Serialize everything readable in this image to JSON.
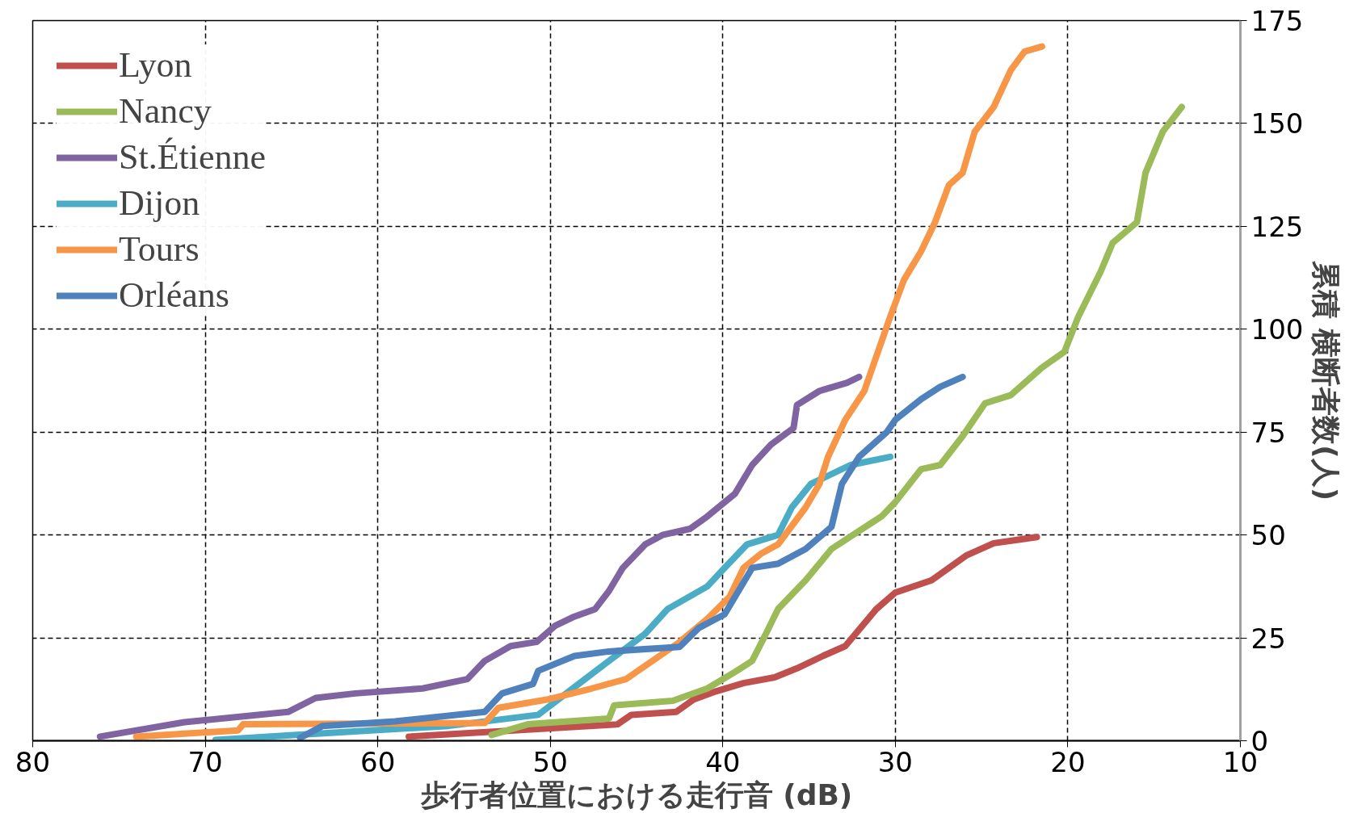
{
  "chart_data": {
    "type": "line",
    "xlabel": "歩行者位置における走行音 (dB)",
    "ylabel": "累積 横断者数(人)",
    "xlim": [
      80,
      10
    ],
    "xticks": [
      80,
      70,
      60,
      50,
      40,
      30,
      20,
      10
    ],
    "ylim": [
      0,
      175
    ],
    "yticks": [
      0,
      25,
      50,
      75,
      100,
      125,
      150,
      175
    ],
    "grid": true,
    "legend": "top left",
    "line_style": "solid",
    "series": [
      {
        "name": "Lyon",
        "color": "#c0504d",
        "x": [
          58.2,
          46.1,
          45.3,
          42.7,
          41.7,
          40.4,
          38.8,
          37,
          35.7,
          34.2,
          32.9,
          32.1,
          31.1,
          30,
          27.9,
          25.9,
          24.3,
          21.8
        ],
        "values": [
          1,
          4,
          6.3,
          7,
          10,
          12,
          14,
          15.4,
          17.6,
          20.6,
          23,
          27,
          32,
          36,
          39,
          45,
          48,
          49.5
        ]
      },
      {
        "name": "Nancy",
        "color": "#9bbb59",
        "x": [
          53.4,
          51.3,
          46.6,
          46.3,
          42.9,
          40.9,
          39.3,
          38.3,
          37.5,
          36.8,
          35.2,
          33.7,
          32.1,
          30.8,
          30,
          28.5,
          27.4,
          26.1,
          24.8,
          23.3,
          21.5,
          20.2,
          19.4,
          18.1,
          17.4,
          16,
          15.5,
          14.5,
          13.4
        ],
        "values": [
          1.4,
          4,
          5.4,
          8.6,
          9.7,
          12.7,
          16.7,
          19.4,
          26,
          32,
          39,
          46.6,
          51,
          54.5,
          58,
          66,
          67,
          74,
          82,
          84,
          90.7,
          94.5,
          103,
          114,
          121,
          126,
          138,
          148,
          154
        ]
      },
      {
        "name": "St.Étienne",
        "color": "#8064a2",
        "x": [
          76.1,
          71.2,
          65.2,
          63.6,
          61.3,
          57.4,
          54.8,
          53.8,
          52.3,
          50.8,
          49.7,
          48.7,
          47.4,
          46.6,
          45.8,
          44.5,
          43.5,
          41.9,
          40.9,
          39.3,
          38.3,
          37.2,
          35.9,
          35.7,
          34.4,
          32.8,
          32.1
        ],
        "values": [
          1,
          4.5,
          7,
          10.4,
          11.5,
          12.7,
          15,
          19.4,
          23,
          24,
          28,
          30,
          32,
          36.4,
          42,
          47.7,
          50,
          51.5,
          54.5,
          60,
          67,
          72,
          76,
          81.6,
          85,
          87,
          88.4
        ]
      },
      {
        "name": "Dijon",
        "color": "#4bacc6",
        "x": [
          69.4,
          64.7,
          55.9,
          50.7,
          48.7,
          46.6,
          44.5,
          43.2,
          40.9,
          39.9,
          38.6,
          36.8,
          36,
          34.9,
          32.6,
          30.3
        ],
        "values": [
          0.2,
          1.4,
          3.6,
          6.3,
          12.7,
          19.4,
          26,
          32,
          37.5,
          42,
          47.7,
          50,
          56.7,
          62.4,
          67,
          69
        ]
      },
      {
        "name": "Tours",
        "color": "#f79646",
        "x": [
          74,
          68.1,
          67.8,
          53.8,
          53,
          50.2,
          47.6,
          45.6,
          42.5,
          40.9,
          39.6,
          38.8,
          37.8,
          36.8,
          35.2,
          34.4,
          33.9,
          32.9,
          31.8,
          30.3,
          29.5,
          28.5,
          27.7,
          26.9,
          26.1,
          25.4,
          24.3,
          23.3,
          22.5,
          21.5
        ],
        "values": [
          1,
          2.5,
          4,
          4.3,
          8,
          10,
          12.7,
          15,
          24,
          29.6,
          35,
          42,
          45.4,
          47.7,
          56.7,
          62.4,
          69,
          78,
          85,
          103,
          112,
          119,
          126,
          135,
          138,
          148,
          154,
          163,
          167.5,
          168.7
        ]
      },
      {
        "name": "Orléans",
        "color": "#4f81bd",
        "x": [
          64.5,
          63.2,
          59,
          53.8,
          52.8,
          51,
          50.7,
          48.6,
          46.6,
          42.5,
          41.4,
          39.9,
          38.3,
          36.8,
          35.2,
          33.7,
          33.1,
          32.1,
          30.5,
          30,
          28.5,
          27.4,
          26.1
        ],
        "values": [
          0.7,
          3.6,
          4.7,
          7,
          11.5,
          13.8,
          17,
          20.6,
          21.7,
          22.8,
          27.4,
          30.7,
          42,
          43,
          46.6,
          52,
          62.4,
          69,
          75,
          78,
          83,
          86,
          88.4
        ]
      }
    ]
  }
}
